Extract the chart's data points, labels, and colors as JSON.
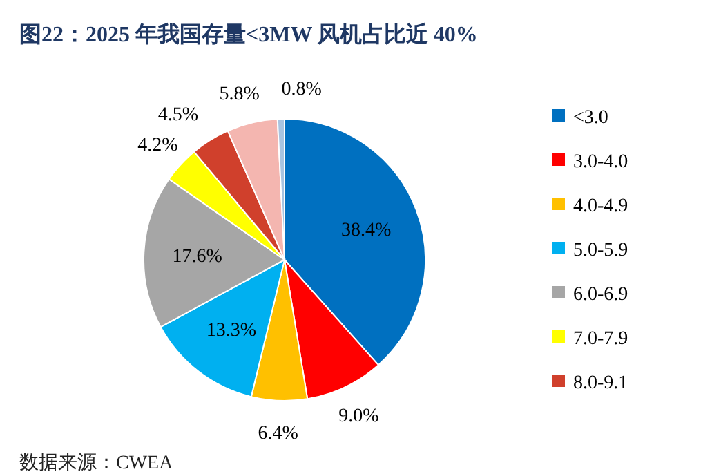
{
  "chart_data": {
    "type": "pie",
    "title": "图22：2025 年我国存量<3MW 风机占比近 40%",
    "categories": [
      "<3.0",
      "3.0-4.0",
      "4.0-4.9",
      "5.0-5.9",
      "6.0-6.9",
      "7.0-7.9",
      "8.0-9.1",
      null,
      null
    ],
    "values": [
      38.4,
      9.0,
      6.4,
      13.3,
      17.6,
      4.2,
      4.5,
      5.8,
      0.8
    ],
    "colors": [
      "#0070c0",
      "#ff0000",
      "#ffc000",
      "#00b0f0",
      "#a6a6a6",
      "#ffff00",
      "#d0402c",
      "#f4b6b0",
      "#a9c4e0"
    ],
    "value_labels": [
      "38.4%",
      "9.0%",
      "6.4%",
      "13.3%",
      "17.6%",
      "4.2%",
      "4.5%",
      "5.8%",
      "0.8%"
    ],
    "legend": "right",
    "annotations": [
      "数据来源：CWEA"
    ]
  }
}
